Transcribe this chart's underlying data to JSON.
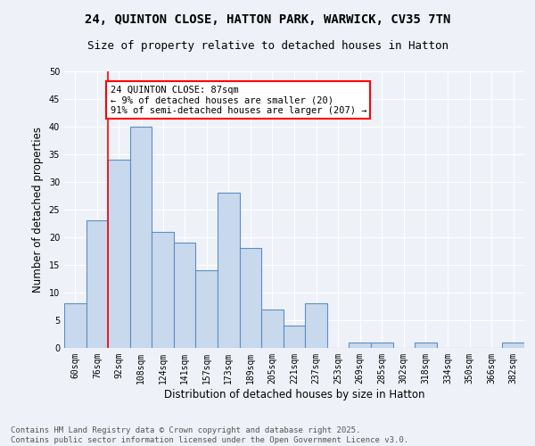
{
  "title_line1": "24, QUINTON CLOSE, HATTON PARK, WARWICK, CV35 7TN",
  "title_line2": "Size of property relative to detached houses in Hatton",
  "xlabel": "Distribution of detached houses by size in Hatton",
  "ylabel": "Number of detached properties",
  "categories": [
    "60sqm",
    "76sqm",
    "92sqm",
    "108sqm",
    "124sqm",
    "141sqm",
    "157sqm",
    "173sqm",
    "189sqm",
    "205sqm",
    "221sqm",
    "237sqm",
    "253sqm",
    "269sqm",
    "285sqm",
    "302sqm",
    "318sqm",
    "334sqm",
    "350sqm",
    "366sqm",
    "382sqm"
  ],
  "values": [
    8,
    23,
    34,
    40,
    21,
    19,
    14,
    28,
    18,
    7,
    4,
    8,
    0,
    1,
    1,
    0,
    1,
    0,
    0,
    0,
    1
  ],
  "bar_color": "#c9d9ed",
  "bar_edge_color": "#5b8ec4",
  "bar_edge_width": 0.8,
  "property_line_x": 1.5,
  "annotation_text": "24 QUINTON CLOSE: 87sqm\n← 9% of detached houses are smaller (20)\n91% of semi-detached houses are larger (207) →",
  "annotation_box_color": "white",
  "annotation_box_edge_color": "red",
  "ylim": [
    0,
    50
  ],
  "yticks": [
    0,
    5,
    10,
    15,
    20,
    25,
    30,
    35,
    40,
    45,
    50
  ],
  "background_color": "#eef2f8",
  "grid_color": "white",
  "footer_text": "Contains HM Land Registry data © Crown copyright and database right 2025.\nContains public sector information licensed under the Open Government Licence v3.0.",
  "title_fontsize": 10,
  "subtitle_fontsize": 9,
  "axis_label_fontsize": 8.5,
  "tick_fontsize": 7,
  "annotation_fontsize": 7.5,
  "footer_fontsize": 6.5
}
